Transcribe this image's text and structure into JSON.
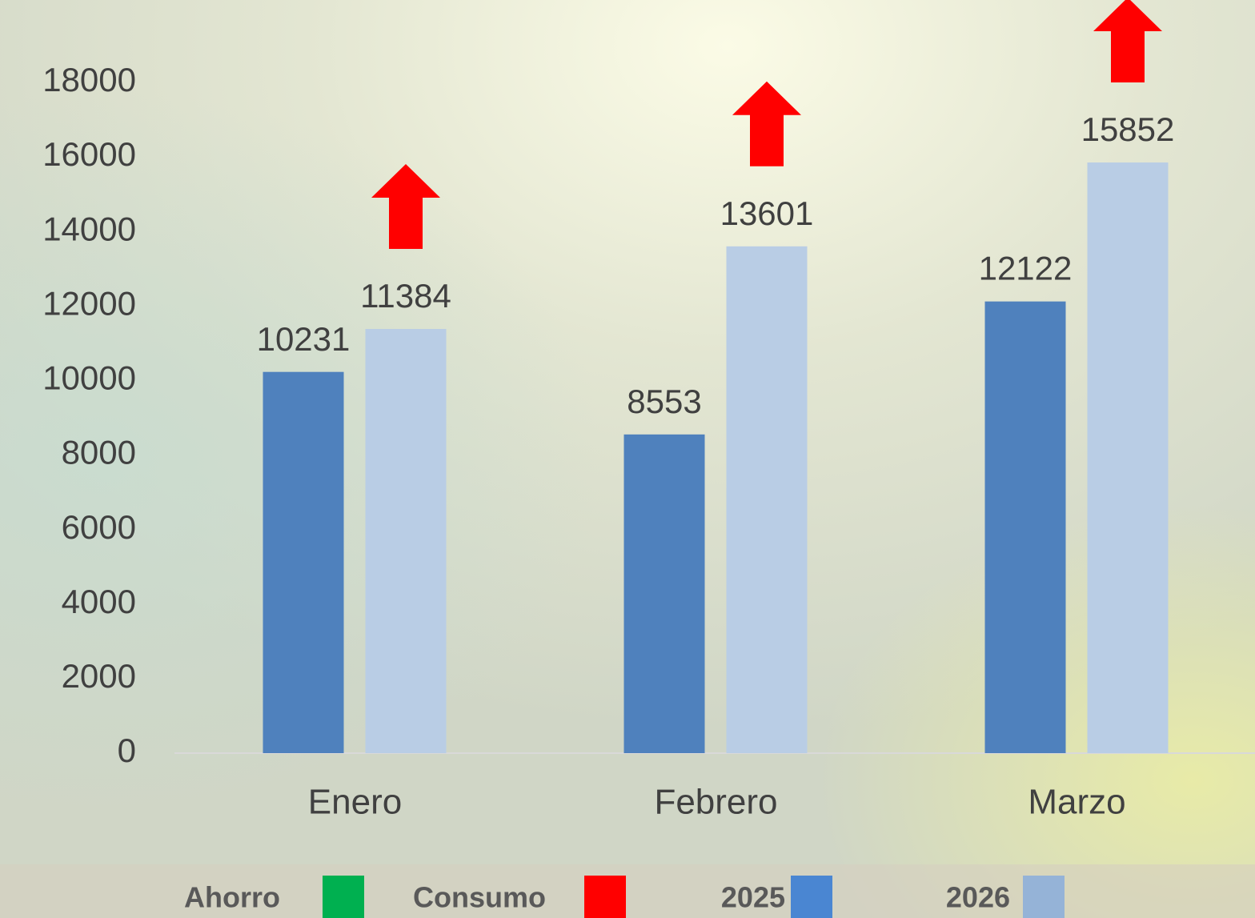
{
  "chart_data": {
    "type": "bar",
    "categories": [
      "Enero",
      "Febrero",
      "Marzo"
    ],
    "series": [
      {
        "name": "2025",
        "color": "#4f81bd",
        "legend_color": "#4a86d2",
        "values": [
          10231,
          8553,
          12122
        ]
      },
      {
        "name": "2026",
        "color": "#b9cde5",
        "legend_color": "#95b3d7",
        "values": [
          11384,
          13601,
          15852
        ]
      }
    ],
    "legend_extra": [
      {
        "name": "Ahorro",
        "color": "#00b050"
      },
      {
        "name": "Consumo",
        "color": "#ff0000"
      }
    ],
    "ylim": [
      0,
      18000
    ],
    "yticks": [
      0,
      2000,
      4000,
      6000,
      8000,
      10000,
      12000,
      14000,
      16000,
      18000
    ],
    "grid": false
  }
}
